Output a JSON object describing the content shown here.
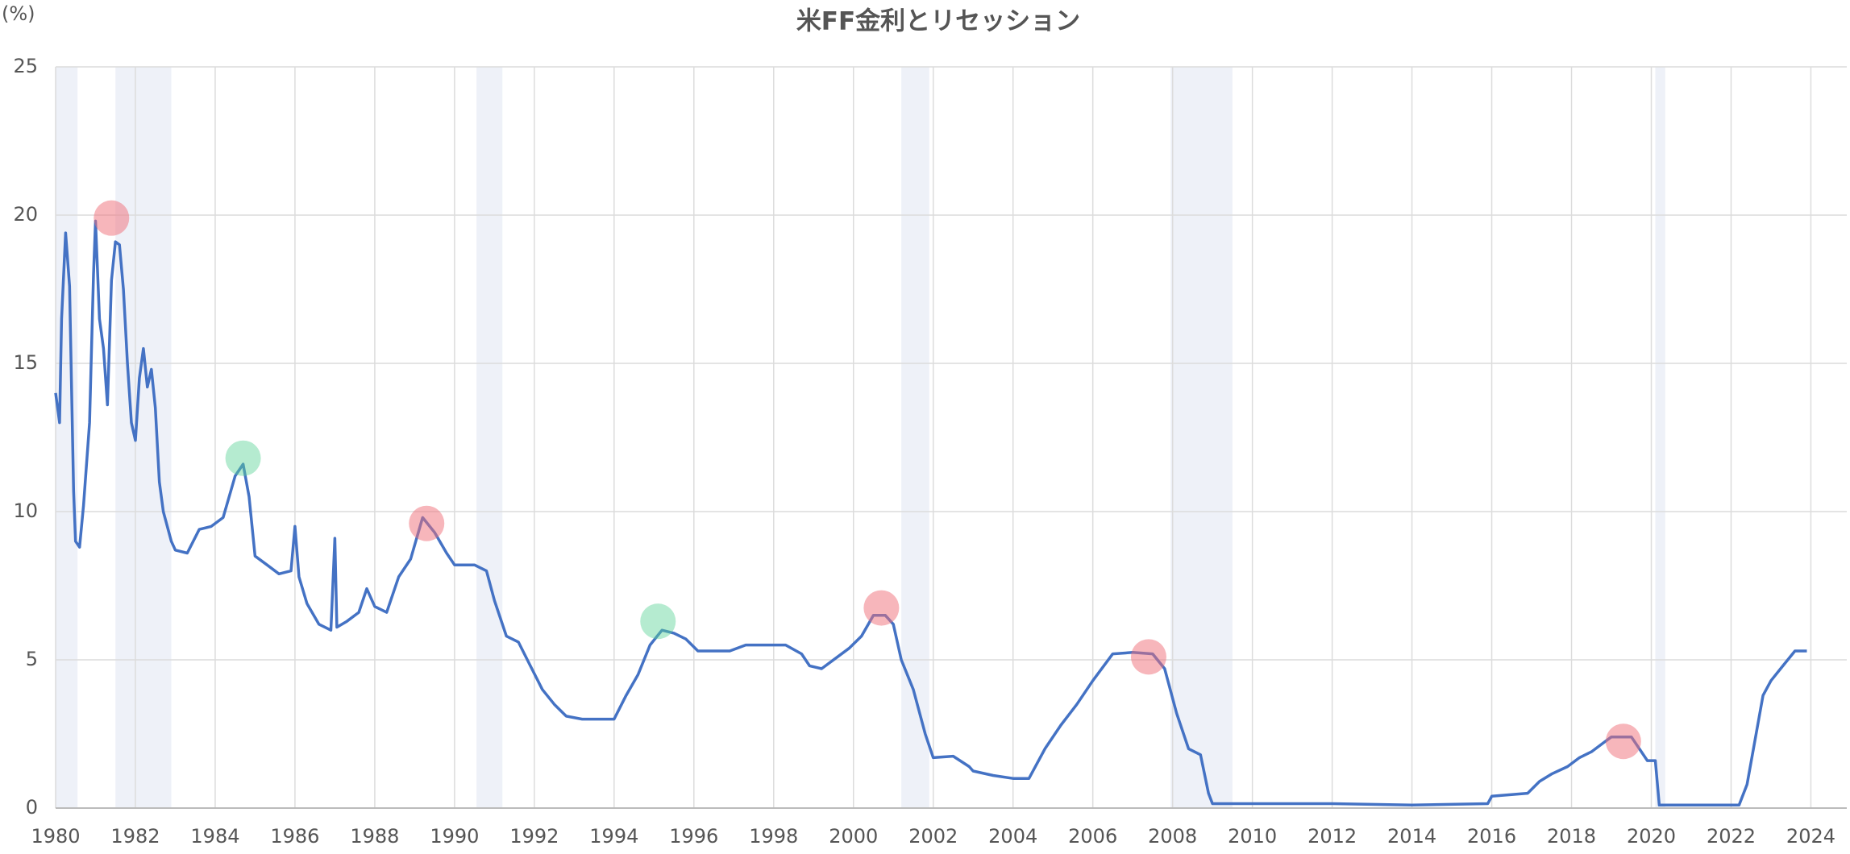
{
  "chart_data": {
    "type": "line",
    "title": "米FF金利とリセッション",
    "y_label": "(%)",
    "xlim": [
      1980,
      2024.9
    ],
    "xticks": [
      1980,
      1982,
      1984,
      1986,
      1988,
      1990,
      1992,
      1994,
      1996,
      1998,
      2000,
      2002,
      2004,
      2006,
      2008,
      2010,
      2012,
      2014,
      2016,
      2018,
      2020,
      2022,
      2024
    ],
    "ylim": [
      0,
      25
    ],
    "yticks": [
      0,
      5,
      10,
      15,
      20,
      25
    ],
    "grid": true,
    "recession_color": "#eef1f8",
    "recessions": [
      [
        1980.0,
        1980.55
      ],
      [
        1981.5,
        1982.9
      ],
      [
        1990.55,
        1991.2
      ],
      [
        2001.2,
        2001.9
      ],
      [
        2007.95,
        2009.5
      ],
      [
        2020.1,
        2020.35
      ]
    ],
    "series": [
      {
        "color": "#4472c4",
        "x": [
          1980.0,
          1980.1,
          1980.15,
          1980.25,
          1980.35,
          1980.45,
          1980.5,
          1980.6,
          1980.7,
          1980.85,
          1980.95,
          1981.0,
          1981.1,
          1981.2,
          1981.3,
          1981.4,
          1981.5,
          1981.6,
          1981.7,
          1981.8,
          1981.9,
          1982.0,
          1982.1,
          1982.2,
          1982.3,
          1982.4,
          1982.5,
          1982.6,
          1982.7,
          1982.9,
          1983.0,
          1983.3,
          1983.6,
          1983.9,
          1984.2,
          1984.5,
          1984.7,
          1984.85,
          1985.0,
          1985.3,
          1985.6,
          1985.9,
          1986.0,
          1986.1,
          1986.3,
          1986.6,
          1986.9,
          1987.0,
          1987.05,
          1987.3,
          1987.6,
          1987.8,
          1988.0,
          1988.3,
          1988.6,
          1988.9,
          1989.2,
          1989.5,
          1989.8,
          1990.0,
          1990.5,
          1990.8,
          1991.0,
          1991.3,
          1991.6,
          1991.9,
          1992.2,
          1992.5,
          1992.8,
          1993.2,
          1993.6,
          1994.0,
          1994.3,
          1994.6,
          1994.9,
          1995.2,
          1995.5,
          1995.8,
          1996.1,
          1996.5,
          1996.9,
          1997.3,
          1997.8,
          1998.3,
          1998.7,
          1998.9,
          1999.2,
          1999.6,
          1999.9,
          2000.2,
          2000.5,
          2000.8,
          2001.0,
          2001.2,
          2001.5,
          2001.8,
          2002.0,
          2002.5,
          2002.9,
          2003.0,
          2003.5,
          2004.0,
          2004.4,
          2004.8,
          2005.2,
          2005.6,
          2006.0,
          2006.5,
          2007.0,
          2007.5,
          2007.8,
          2008.1,
          2008.4,
          2008.7,
          2008.9,
          2009.0,
          2010.0,
          2012.0,
          2014.0,
          2015.9,
          2016.0,
          2016.9,
          2017.2,
          2017.5,
          2017.9,
          2018.2,
          2018.5,
          2018.8,
          2019.0,
          2019.5,
          2019.7,
          2019.9,
          2020.1,
          2020.2,
          2022.2,
          2022.4,
          2022.6,
          2022.8,
          2023.0,
          2023.3,
          2023.6,
          2023.9
        ],
        "values": [
          14.0,
          13.0,
          16.5,
          19.4,
          17.6,
          10.7,
          9.0,
          8.8,
          10.2,
          13.0,
          18.0,
          19.8,
          16.5,
          15.5,
          13.6,
          17.8,
          19.1,
          19.0,
          17.5,
          15.0,
          13.0,
          12.4,
          14.5,
          15.5,
          14.2,
          14.8,
          13.5,
          11.0,
          10.0,
          9.0,
          8.7,
          8.6,
          9.4,
          9.5,
          9.8,
          11.2,
          11.6,
          10.5,
          8.5,
          8.2,
          7.9,
          8.0,
          9.5,
          7.8,
          6.9,
          6.2,
          6.0,
          9.1,
          6.1,
          6.3,
          6.6,
          7.4,
          6.8,
          6.6,
          7.8,
          8.4,
          9.8,
          9.3,
          8.6,
          8.2,
          8.2,
          8.0,
          7.0,
          5.8,
          5.6,
          4.8,
          4.0,
          3.5,
          3.1,
          3.0,
          3.0,
          3.0,
          3.8,
          4.5,
          5.5,
          6.0,
          5.9,
          5.7,
          5.3,
          5.3,
          5.3,
          5.5,
          5.5,
          5.5,
          5.2,
          4.8,
          4.7,
          5.1,
          5.4,
          5.8,
          6.5,
          6.5,
          6.2,
          5.0,
          4.0,
          2.5,
          1.7,
          1.75,
          1.4,
          1.25,
          1.1,
          1.0,
          1.0,
          2.0,
          2.8,
          3.5,
          4.3,
          5.2,
          5.25,
          5.2,
          4.7,
          3.2,
          2.0,
          1.8,
          0.5,
          0.15,
          0.15,
          0.15,
          0.1,
          0.15,
          0.4,
          0.5,
          0.9,
          1.15,
          1.4,
          1.7,
          1.9,
          2.2,
          2.4,
          2.4,
          2.0,
          1.6,
          1.6,
          0.1,
          0.1,
          0.8,
          2.3,
          3.8,
          4.3,
          4.8,
          5.3,
          5.3
        ]
      }
    ],
    "markers": [
      {
        "color": "rgba(240,110,120,0.5)",
        "x": [
          1981.4,
          1989.3,
          2000.7,
          2007.4,
          2019.3
        ],
        "values": [
          19.9,
          9.6,
          6.75,
          5.1,
          2.25
        ]
      },
      {
        "color": "rgba(90,210,150,0.45)",
        "x": [
          1984.7,
          1995.1
        ],
        "values": [
          11.8,
          6.3
        ]
      }
    ]
  }
}
